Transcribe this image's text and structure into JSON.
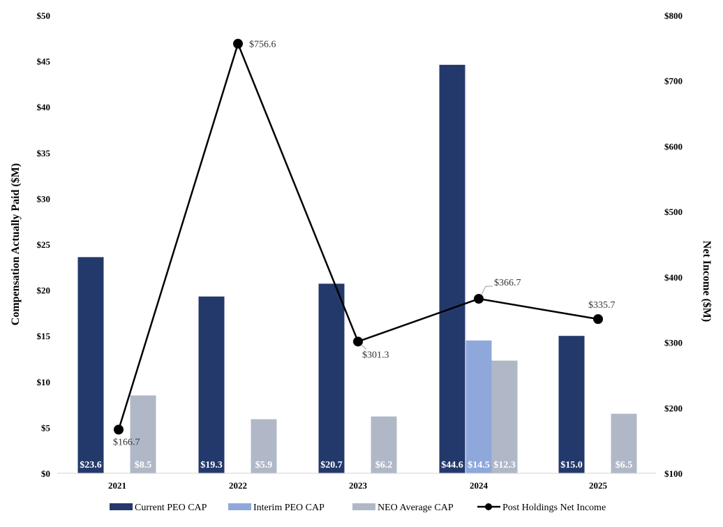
{
  "chart_data": {
    "type": "bar+line",
    "categories": [
      "2021",
      "2022",
      "2023",
      "2024",
      "2025"
    ],
    "ylabel": "Compensation Actually Paid ($M)",
    "y2label": "Net Income ($M)",
    "ylim": [
      0,
      50
    ],
    "y2lim": [
      100,
      800
    ],
    "yticks": [
      "$0",
      "$5",
      "$10",
      "$15",
      "$20",
      "$25",
      "$30",
      "$35",
      "$40",
      "$45",
      "$50"
    ],
    "y2ticks": [
      "$100",
      "$200",
      "$300",
      "$400",
      "$500",
      "$600",
      "$700",
      "$800"
    ],
    "grid": false,
    "legend_position": "bottom",
    "series": [
      {
        "name": "Current PEO CAP",
        "type": "bar",
        "color": "#24396b",
        "values": [
          23.6,
          19.3,
          20.7,
          44.6,
          15.0
        ],
        "labels": [
          "$23.6",
          "$19.3",
          "$20.7",
          "$44.6",
          "$15.0"
        ]
      },
      {
        "name": "Interim PEO CAP",
        "type": "bar",
        "color": "#8fa8dc",
        "values": [
          null,
          null,
          null,
          14.5,
          null
        ],
        "labels": [
          "",
          "",
          "",
          "$14.5",
          ""
        ]
      },
      {
        "name": "NEO Average CAP",
        "type": "bar",
        "color": "#b0b8c8",
        "values": [
          8.5,
          5.9,
          6.2,
          12.3,
          6.5
        ],
        "labels": [
          "$8.5",
          "$5.9",
          "$6.2",
          "$12.3",
          "$6.5"
        ]
      },
      {
        "name": "Post Holdings Net Income",
        "type": "line",
        "axis": "right",
        "color": "#000000",
        "values": [
          166.7,
          756.6,
          301.3,
          366.7,
          335.7
        ],
        "labels": [
          "$166.7",
          "$756.6",
          "$301.3",
          "$366.7",
          "$335.7"
        ]
      }
    ]
  }
}
